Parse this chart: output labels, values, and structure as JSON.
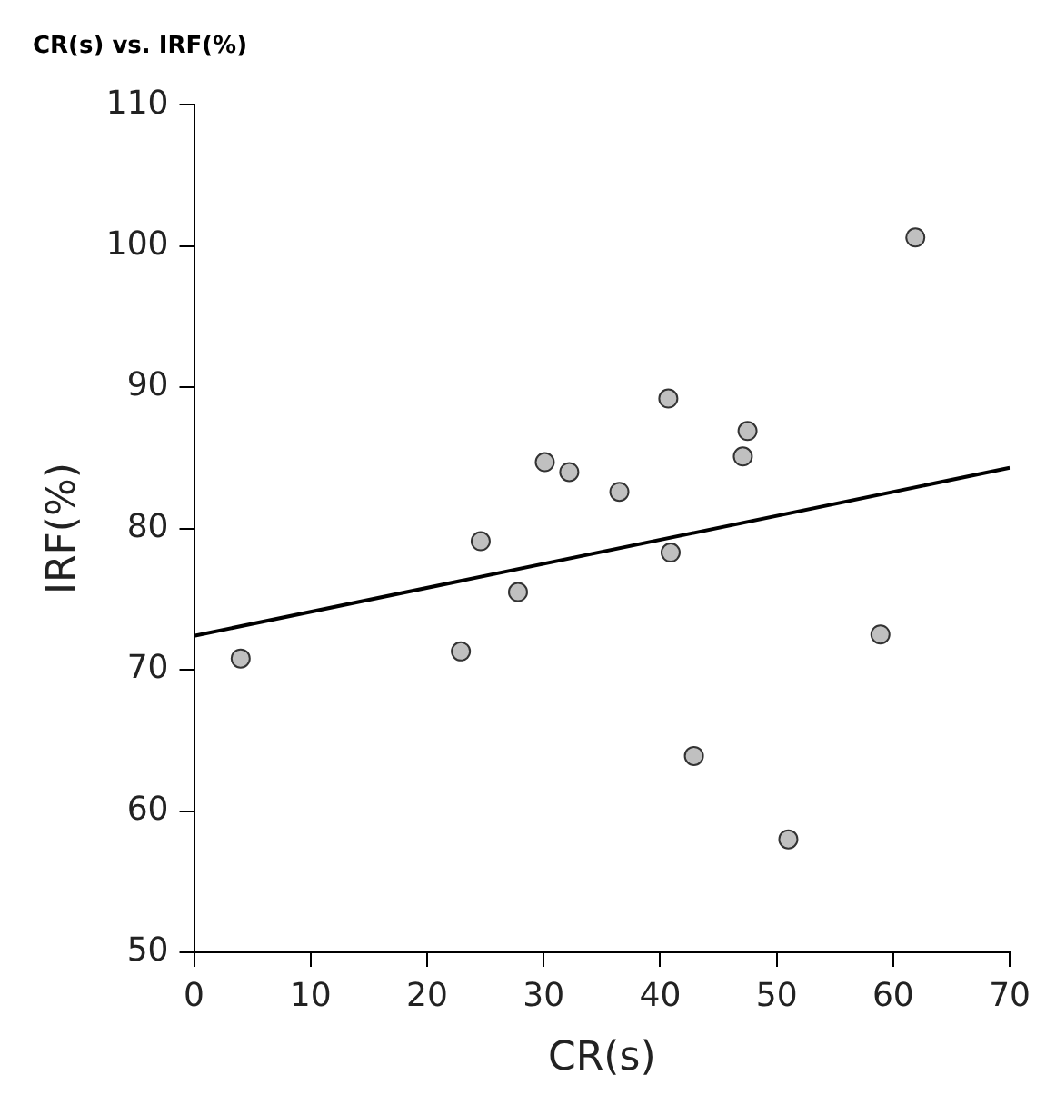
{
  "chart_data": {
    "type": "scatter",
    "title": "CR(s) vs. IRF(%)",
    "xlabel": "CR(s)",
    "ylabel": "IRF(%)",
    "xlim": [
      0,
      70
    ],
    "xticks": [
      0,
      10,
      20,
      30,
      40,
      50,
      60,
      70
    ],
    "ylim": [
      50,
      110
    ],
    "yticks": [
      50,
      60,
      70,
      80,
      90,
      100,
      110
    ],
    "grid": false,
    "marker": "circle",
    "series": [
      {
        "color": "#c0c0c0",
        "x": [
          4.0,
          22.9,
          24.6,
          27.8,
          30.1,
          32.2,
          36.5,
          40.7,
          40.9,
          42.9,
          47.1,
          47.5,
          51.0,
          58.9,
          61.9
        ],
        "values": [
          70.8,
          71.3,
          79.1,
          75.5,
          84.7,
          84.0,
          82.6,
          89.2,
          78.3,
          63.9,
          85.1,
          86.9,
          58.0,
          72.5,
          100.6
        ]
      },
      {
        "type": "line",
        "color": "#000000",
        "x": [
          0,
          70
        ],
        "values": [
          72.4,
          84.3
        ],
        "marker": "none",
        "line_style": "solid"
      }
    ]
  }
}
